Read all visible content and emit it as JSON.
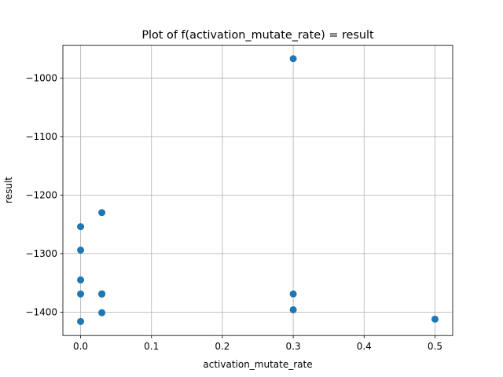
{
  "chart_data": {
    "type": "scatter",
    "title": "Plot of f(activation_mutate_rate) = result",
    "x_label": "activation_mutate_rate",
    "y_label": "result",
    "x": [
      0.3,
      0.03,
      0,
      0,
      0,
      0,
      0.03,
      0.03,
      0.03,
      0.3,
      0.3,
      0.03,
      0,
      0.5
    ],
    "values": [
      -967,
      -1230,
      -1254,
      -1294,
      -1345,
      -1369,
      -1369,
      -1369,
      -1369,
      -1369,
      -1396,
      -1401,
      -1416,
      -1412
    ],
    "color": "#1f77b4",
    "xlim": [
      -0.025,
      0.525
    ],
    "xticks": [
      {
        "value": 0,
        "label": "0.0"
      },
      0.1,
      0.2,
      0.3,
      0.4,
      0.5
    ],
    "ylim": [
      -1440,
      -944
    ],
    "yticks": [
      {
        "value": -1400,
        "label": "−1400"
      },
      {
        "value": -1300,
        "label": "−1300"
      },
      {
        "value": -1200,
        "label": "−1200"
      },
      {
        "value": -1100,
        "label": "−1100"
      },
      {
        "value": -1000,
        "label": "−1000"
      }
    ],
    "grid": true
  }
}
